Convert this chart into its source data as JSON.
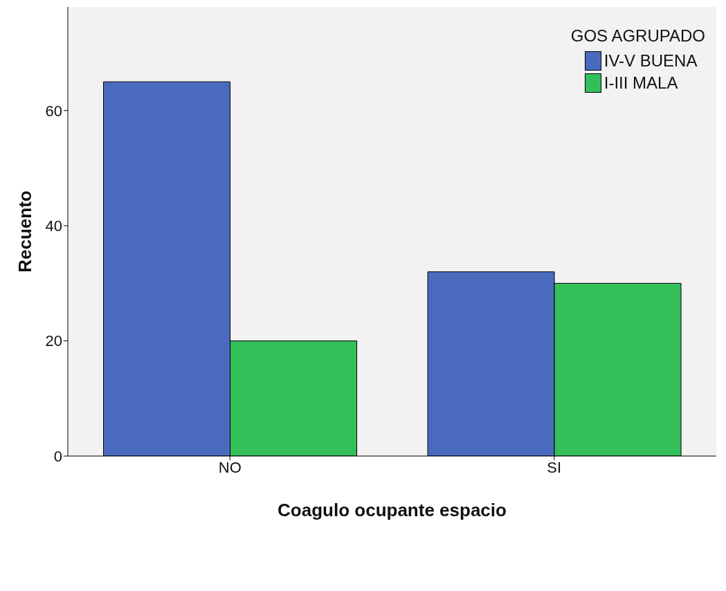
{
  "chart_data": {
    "type": "bar",
    "xlabel": "Coagulo ocupante espacio",
    "ylabel": "Recuento",
    "legend_title": "GOS AGRUPADO",
    "categories": [
      "NO",
      "SI"
    ],
    "series": [
      {
        "name": "IV-V BUENA",
        "color": "#4a6bbd",
        "values": [
          65,
          32
        ]
      },
      {
        "name": "I-III MALA",
        "color": "#33bf5a",
        "values": [
          20,
          30
        ]
      }
    ],
    "ylim": [
      0,
      78
    ],
    "yticks": [
      0,
      20,
      40,
      60
    ],
    "grid": false,
    "legend": "top right"
  }
}
